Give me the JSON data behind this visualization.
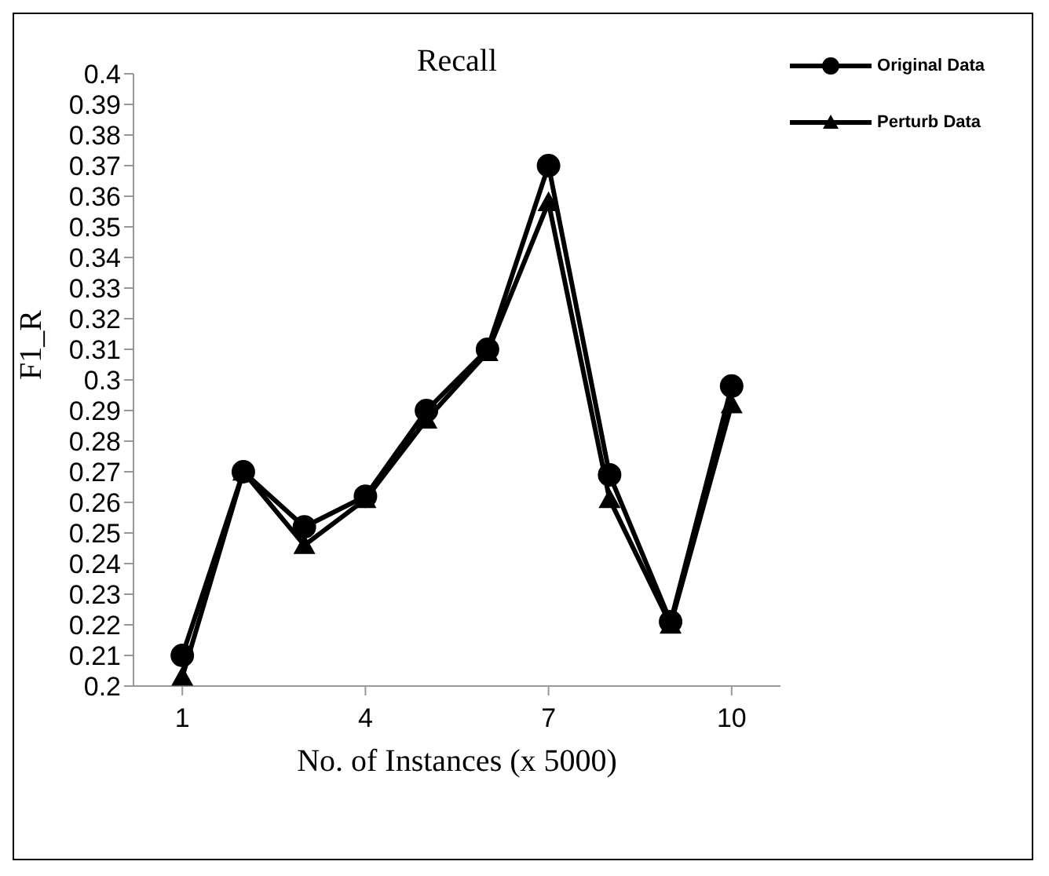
{
  "chart_data": {
    "type": "line",
    "title": "Recall",
    "xlabel": "No. of Instances (x 5000)",
    "ylabel": "F1_R",
    "x": [
      1,
      2,
      3,
      4,
      5,
      6,
      7,
      8,
      9,
      10
    ],
    "xlim": [
      0.2,
      10.8
    ],
    "xticks": [
      1,
      4,
      7,
      10
    ],
    "ylim": [
      0.2,
      0.4
    ],
    "yticks": [
      0.2,
      0.21,
      0.22,
      0.23,
      0.24,
      0.25,
      0.26,
      0.27,
      0.28,
      0.29,
      0.3,
      0.31,
      0.32,
      0.33,
      0.34,
      0.35,
      0.36,
      0.37,
      0.38,
      0.39,
      0.4
    ],
    "grid": false,
    "legend": "top right",
    "line_style": "solid",
    "series": [
      {
        "name": "Original Data",
        "color": "#000000",
        "marker": "circle",
        "values": [
          0.21,
          0.27,
          0.252,
          0.262,
          0.29,
          0.31,
          0.37,
          0.269,
          0.221,
          0.298
        ]
      },
      {
        "name": "Perturb Data",
        "color": "#000000",
        "marker": "triangle",
        "values": [
          0.203,
          0.27,
          0.246,
          0.261,
          0.287,
          0.309,
          0.358,
          0.261,
          0.22,
          0.292
        ]
      }
    ]
  }
}
